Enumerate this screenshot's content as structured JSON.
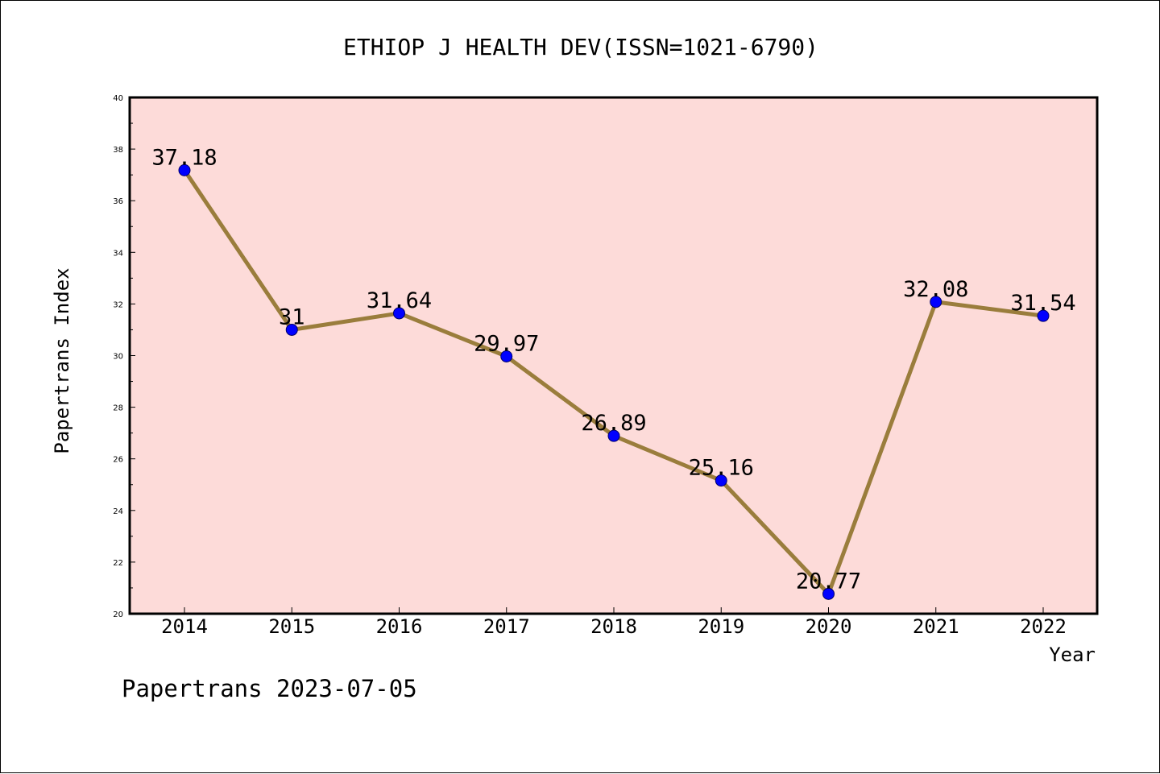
{
  "chart_data": {
    "type": "line",
    "title": "ETHIOP J HEALTH DEV(ISSN=1021-6790)",
    "xlabel": "Year",
    "ylabel": "Papertrans Index",
    "categories": [
      "2014",
      "2015",
      "2016",
      "2017",
      "2018",
      "2019",
      "2020",
      "2021",
      "2022"
    ],
    "values": [
      37.18,
      31,
      31.64,
      29.97,
      26.89,
      25.16,
      20.77,
      32.08,
      31.54
    ],
    "data_labels": [
      "37.18",
      "31",
      "31.64",
      "29.97",
      "26.89",
      "25.16",
      "20.77",
      "32.08",
      "31.54"
    ],
    "ylim": [
      20,
      40
    ],
    "yticks": [
      "20",
      "22",
      "24",
      "26",
      "28",
      "30",
      "32",
      "34",
      "36",
      "38",
      "40"
    ],
    "grid": false,
    "colors": {
      "plot_background": "#fddbd9",
      "line": "#9a7d3c",
      "marker": "#0000ff",
      "axis": "#000000"
    }
  },
  "footer": {
    "text": "Papertrans 2023-07-05"
  }
}
